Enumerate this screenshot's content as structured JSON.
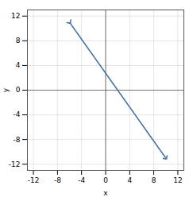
{
  "chart_data": {
    "type": "line",
    "x": [
      -6,
      10
    ],
    "values": [
      11,
      -11
    ],
    "color": "#4472A0",
    "marker": "arrow",
    "xlabel": "x",
    "ylabel": "y",
    "xlim": [
      -13,
      13
    ],
    "ylim": [
      -13,
      13
    ],
    "xticks": [
      -12,
      -8,
      -4,
      0,
      4,
      8,
      12
    ],
    "yticks": [
      -12,
      -8,
      -4,
      0,
      4,
      8,
      12
    ],
    "grid": true
  }
}
